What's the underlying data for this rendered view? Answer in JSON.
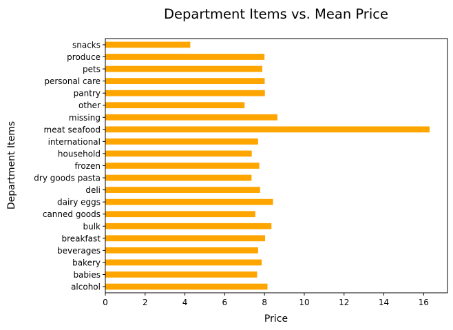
{
  "chart_data": {
    "type": "bar",
    "orientation": "horizontal",
    "title": "Department Items vs. Mean Price",
    "xlabel": "Price",
    "ylabel": "Department Items",
    "xlim": [
      0,
      17.2
    ],
    "xticks": [
      0,
      2,
      4,
      6,
      8,
      10,
      12,
      14,
      16
    ],
    "bar_color": "#FFA500",
    "grid": false,
    "legend": "none",
    "categories": [
      "alcohol",
      "babies",
      "bakery",
      "beverages",
      "breakfast",
      "bulk",
      "canned goods",
      "dairy eggs",
      "deli",
      "dry goods pasta",
      "frozen",
      "household",
      "international",
      "meat seafood",
      "missing",
      "other",
      "pantry",
      "personal care",
      "pets",
      "produce",
      "snacks"
    ],
    "values": [
      8.15,
      7.63,
      7.86,
      7.68,
      8.03,
      8.35,
      7.54,
      8.43,
      7.78,
      7.35,
      7.74,
      7.36,
      7.68,
      16.3,
      8.65,
      7.0,
      8.02,
      8.01,
      7.89,
      8.0,
      4.27
    ]
  }
}
